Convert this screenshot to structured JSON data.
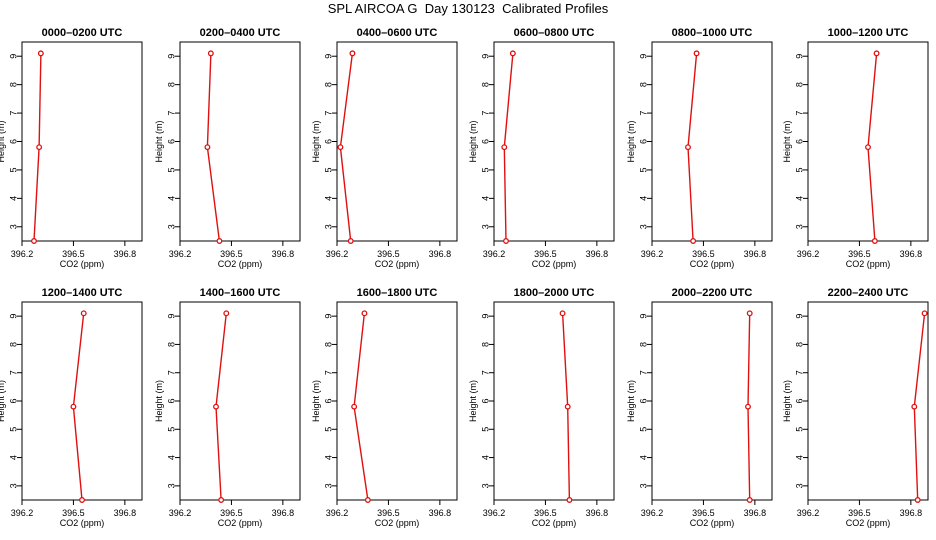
{
  "figure": {
    "title": "SPL AIRCOA G  Day 130123  Calibrated Profiles"
  },
  "colors": {
    "series": "#e01010",
    "axis": "#000000",
    "background": "#ffffff"
  },
  "chart_data": [
    {
      "type": "line",
      "title": "0000–0200 UTC",
      "xlabel": "CO2 (ppm)",
      "ylabel": "Height (m)",
      "xlim": [
        396.2,
        396.9
      ],
      "ylim": [
        2.5,
        9.5
      ],
      "xticks": [
        396.2,
        396.5,
        396.8
      ],
      "xtick_labels": [
        "396.2",
        "396.5",
        "396.8"
      ],
      "yticks": [
        3,
        4,
        5,
        6,
        7,
        8,
        9
      ],
      "ytick_labels": [
        "3",
        "4",
        "5",
        "6",
        "7",
        "8",
        "9"
      ],
      "series": [
        {
          "x": [
            396.27,
            396.3,
            396.31
          ],
          "y": [
            2.5,
            5.8,
            9.1
          ]
        }
      ]
    },
    {
      "type": "line",
      "title": "0200–0400 UTC",
      "xlabel": "CO2 (ppm)",
      "ylabel": "Height (m)",
      "xlim": [
        396.2,
        396.9
      ],
      "ylim": [
        2.5,
        9.5
      ],
      "xticks": [
        396.2,
        396.5,
        396.8
      ],
      "xtick_labels": [
        "396.2",
        "396.5",
        "396.8"
      ],
      "yticks": [
        3,
        4,
        5,
        6,
        7,
        8,
        9
      ],
      "ytick_labels": [
        "3",
        "4",
        "5",
        "6",
        "7",
        "8",
        "9"
      ],
      "series": [
        {
          "x": [
            396.43,
            396.36,
            396.38
          ],
          "y": [
            2.5,
            5.8,
            9.1
          ]
        }
      ]
    },
    {
      "type": "line",
      "title": "0400–0600 UTC",
      "xlabel": "CO2 (ppm)",
      "ylabel": "Height (m)",
      "xlim": [
        396.2,
        396.9
      ],
      "ylim": [
        2.5,
        9.5
      ],
      "xticks": [
        396.2,
        396.5,
        396.8
      ],
      "xtick_labels": [
        "396.2",
        "396.5",
        "396.8"
      ],
      "yticks": [
        3,
        4,
        5,
        6,
        7,
        8,
        9
      ],
      "ytick_labels": [
        "3",
        "4",
        "5",
        "6",
        "7",
        "8",
        "9"
      ],
      "series": [
        {
          "x": [
            396.28,
            396.22,
            396.29
          ],
          "y": [
            2.5,
            5.8,
            9.1
          ]
        }
      ]
    },
    {
      "type": "line",
      "title": "0600–0800 UTC",
      "xlabel": "CO2 (ppm)",
      "ylabel": "Height (m)",
      "xlim": [
        396.2,
        396.9
      ],
      "ylim": [
        2.5,
        9.5
      ],
      "xticks": [
        396.2,
        396.5,
        396.8
      ],
      "xtick_labels": [
        "396.2",
        "396.5",
        "396.8"
      ],
      "yticks": [
        3,
        4,
        5,
        6,
        7,
        8,
        9
      ],
      "ytick_labels": [
        "3",
        "4",
        "5",
        "6",
        "7",
        "8",
        "9"
      ],
      "series": [
        {
          "x": [
            396.27,
            396.26,
            396.31
          ],
          "y": [
            2.5,
            5.8,
            9.1
          ]
        }
      ]
    },
    {
      "type": "line",
      "title": "0800–1000 UTC",
      "xlabel": "CO2 (ppm)",
      "ylabel": "Height (m)",
      "xlim": [
        396.2,
        396.9
      ],
      "ylim": [
        2.5,
        9.5
      ],
      "xticks": [
        396.2,
        396.5,
        396.8
      ],
      "xtick_labels": [
        "396.2",
        "396.5",
        "396.8"
      ],
      "yticks": [
        3,
        4,
        5,
        6,
        7,
        8,
        9
      ],
      "ytick_labels": [
        "3",
        "4",
        "5",
        "6",
        "7",
        "8",
        "9"
      ],
      "series": [
        {
          "x": [
            396.44,
            396.41,
            396.46
          ],
          "y": [
            2.5,
            5.8,
            9.1
          ]
        }
      ]
    },
    {
      "type": "line",
      "title": "1000–1200 UTC",
      "xlabel": "CO2 (ppm)",
      "ylabel": "Height (m)",
      "xlim": [
        396.2,
        396.9
      ],
      "ylim": [
        2.5,
        9.5
      ],
      "xticks": [
        396.2,
        396.5,
        396.8
      ],
      "xtick_labels": [
        "396.2",
        "396.5",
        "396.8"
      ],
      "yticks": [
        3,
        4,
        5,
        6,
        7,
        8,
        9
      ],
      "ytick_labels": [
        "3",
        "4",
        "5",
        "6",
        "7",
        "8",
        "9"
      ],
      "series": [
        {
          "x": [
            396.59,
            396.55,
            396.6
          ],
          "y": [
            2.5,
            5.8,
            9.1
          ]
        }
      ]
    },
    {
      "type": "line",
      "title": "1200–1400 UTC",
      "xlabel": "CO2 (ppm)",
      "ylabel": "Height (m)",
      "xlim": [
        396.2,
        396.9
      ],
      "ylim": [
        2.5,
        9.5
      ],
      "xticks": [
        396.2,
        396.5,
        396.8
      ],
      "xtick_labels": [
        "396.2",
        "396.5",
        "396.8"
      ],
      "yticks": [
        3,
        4,
        5,
        6,
        7,
        8,
        9
      ],
      "ytick_labels": [
        "3",
        "4",
        "5",
        "6",
        "7",
        "8",
        "9"
      ],
      "series": [
        {
          "x": [
            396.55,
            396.5,
            396.56
          ],
          "y": [
            2.5,
            5.8,
            9.1
          ]
        }
      ]
    },
    {
      "type": "line",
      "title": "1400–1600 UTC",
      "xlabel": "CO2 (ppm)",
      "ylabel": "Height (m)",
      "xlim": [
        396.2,
        396.9
      ],
      "ylim": [
        2.5,
        9.5
      ],
      "xticks": [
        396.2,
        396.5,
        396.8
      ],
      "xtick_labels": [
        "396.2",
        "396.5",
        "396.8"
      ],
      "yticks": [
        3,
        4,
        5,
        6,
        7,
        8,
        9
      ],
      "ytick_labels": [
        "3",
        "4",
        "5",
        "6",
        "7",
        "8",
        "9"
      ],
      "series": [
        {
          "x": [
            396.44,
            396.41,
            396.47
          ],
          "y": [
            2.5,
            5.8,
            9.1
          ]
        }
      ]
    },
    {
      "type": "line",
      "title": "1600–1800 UTC",
      "xlabel": "CO2 (ppm)",
      "ylabel": "Height (m)",
      "xlim": [
        396.2,
        396.9
      ],
      "ylim": [
        2.5,
        9.5
      ],
      "xticks": [
        396.2,
        396.5,
        396.8
      ],
      "xtick_labels": [
        "396.2",
        "396.5",
        "396.8"
      ],
      "yticks": [
        3,
        4,
        5,
        6,
        7,
        8,
        9
      ],
      "ytick_labels": [
        "3",
        "4",
        "5",
        "6",
        "7",
        "8",
        "9"
      ],
      "series": [
        {
          "x": [
            396.38,
            396.3,
            396.36
          ],
          "y": [
            2.5,
            5.8,
            9.1
          ]
        }
      ]
    },
    {
      "type": "line",
      "title": "1800–2000 UTC",
      "xlabel": "CO2 (ppm)",
      "ylabel": "Height (m)",
      "xlim": [
        396.2,
        396.9
      ],
      "ylim": [
        2.5,
        9.5
      ],
      "xticks": [
        396.2,
        396.5,
        396.8
      ],
      "xtick_labels": [
        "396.2",
        "396.5",
        "396.8"
      ],
      "yticks": [
        3,
        4,
        5,
        6,
        7,
        8,
        9
      ],
      "ytick_labels": [
        "3",
        "4",
        "5",
        "6",
        "7",
        "8",
        "9"
      ],
      "series": [
        {
          "x": [
            396.64,
            396.63,
            396.6
          ],
          "y": [
            2.5,
            5.8,
            9.1
          ]
        }
      ]
    },
    {
      "type": "line",
      "title": "2000–2200 UTC",
      "xlabel": "CO2 (ppm)",
      "ylabel": "Height (m)",
      "xlim": [
        396.2,
        396.9
      ],
      "ylim": [
        2.5,
        9.5
      ],
      "xticks": [
        396.2,
        396.5,
        396.8
      ],
      "xtick_labels": [
        "396.2",
        "396.5",
        "396.8"
      ],
      "yticks": [
        3,
        4,
        5,
        6,
        7,
        8,
        9
      ],
      "ytick_labels": [
        "3",
        "4",
        "5",
        "6",
        "7",
        "8",
        "9"
      ],
      "series": [
        {
          "x": [
            396.77,
            396.76,
            396.77
          ],
          "y": [
            2.5,
            5.8,
            9.1
          ]
        }
      ]
    },
    {
      "type": "line",
      "title": "2200–2400 UTC",
      "xlabel": "CO2 (ppm)",
      "ylabel": "Height (m)",
      "xlim": [
        396.2,
        396.9
      ],
      "ylim": [
        2.5,
        9.5
      ],
      "xticks": [
        396.2,
        396.5,
        396.8
      ],
      "xtick_labels": [
        "396.2",
        "396.5",
        "396.8"
      ],
      "yticks": [
        3,
        4,
        5,
        6,
        7,
        8,
        9
      ],
      "ytick_labels": [
        "3",
        "4",
        "5",
        "6",
        "7",
        "8",
        "9"
      ],
      "series": [
        {
          "x": [
            396.84,
            396.82,
            396.88
          ],
          "y": [
            2.5,
            5.8,
            9.1
          ]
        }
      ]
    }
  ]
}
